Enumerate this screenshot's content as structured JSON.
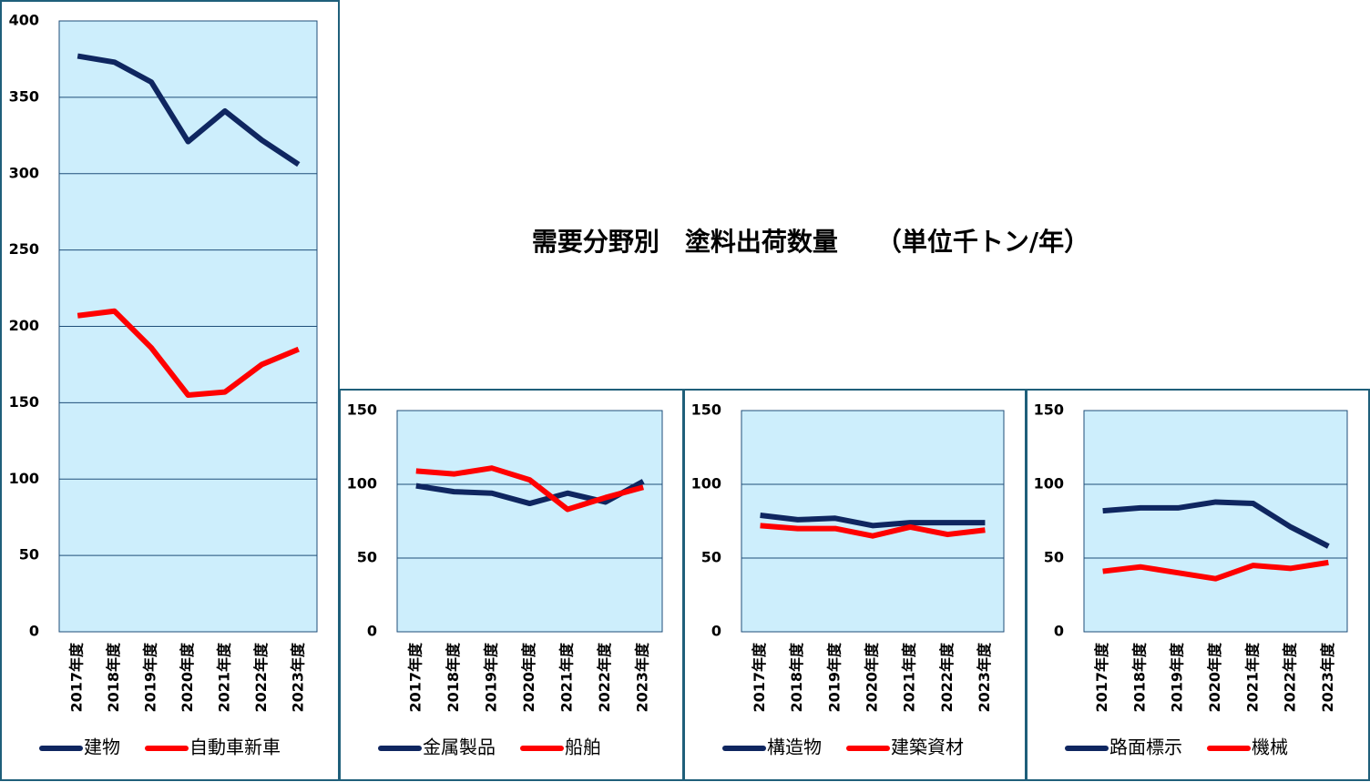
{
  "title": "需要分野別　塗料出荷数量　　（単位千トン/年）",
  "chart_data": [
    {
      "type": "line",
      "categories": [
        "2017年度",
        "2018年度",
        "2019年度",
        "2020年度",
        "2021年度",
        "2022年度",
        "2023年度"
      ],
      "series": [
        {
          "name": "建物",
          "color": "#0f2660",
          "values": [
            377,
            373,
            360,
            321,
            341,
            322,
            306
          ]
        },
        {
          "name": "自動車新車",
          "color": "#ff0000",
          "values": [
            207,
            210,
            186,
            155,
            157,
            175,
            185
          ]
        }
      ],
      "ylim": [
        0,
        400
      ],
      "yticks": [
        0,
        50,
        100,
        150,
        200,
        250,
        300,
        350,
        400
      ],
      "grid": true,
      "legend": "bottom"
    },
    {
      "type": "line",
      "categories": [
        "2017年度",
        "2018年度",
        "2019年度",
        "2020年度",
        "2021年度",
        "2022年度",
        "2023年度"
      ],
      "series": [
        {
          "name": "金属製品",
          "color": "#0f2660",
          "values": [
            99,
            95,
            94,
            87,
            94,
            88,
            102
          ]
        },
        {
          "name": "船舶",
          "color": "#ff0000",
          "values": [
            109,
            107,
            111,
            103,
            83,
            91,
            98
          ]
        }
      ],
      "ylim": [
        0,
        150
      ],
      "yticks": [
        0,
        50,
        100,
        150
      ],
      "grid": true,
      "legend": "bottom"
    },
    {
      "type": "line",
      "categories": [
        "2017年度",
        "2018年度",
        "2019年度",
        "2020年度",
        "2021年度",
        "2022年度",
        "2023年度"
      ],
      "series": [
        {
          "name": "構造物",
          "color": "#0f2660",
          "values": [
            79,
            76,
            77,
            72,
            74,
            74,
            74
          ]
        },
        {
          "name": "建築資材",
          "color": "#ff0000",
          "values": [
            72,
            70,
            70,
            65,
            71,
            66,
            69
          ]
        }
      ],
      "ylim": [
        0,
        150
      ],
      "yticks": [
        0,
        50,
        100,
        150
      ],
      "grid": true,
      "legend": "bottom"
    },
    {
      "type": "line",
      "categories": [
        "2017年度",
        "2018年度",
        "2019年度",
        "2020年度",
        "2021年度",
        "2022年度",
        "2023年度"
      ],
      "series": [
        {
          "name": "路面標示",
          "color": "#0f2660",
          "values": [
            82,
            84,
            84,
            88,
            87,
            71,
            58
          ]
        },
        {
          "name": "機械",
          "color": "#ff0000",
          "values": [
            41,
            44,
            40,
            36,
            45,
            43,
            47
          ]
        }
      ],
      "ylim": [
        0,
        150
      ],
      "yticks": [
        0,
        50,
        100,
        150
      ],
      "grid": true,
      "legend": "bottom"
    }
  ]
}
